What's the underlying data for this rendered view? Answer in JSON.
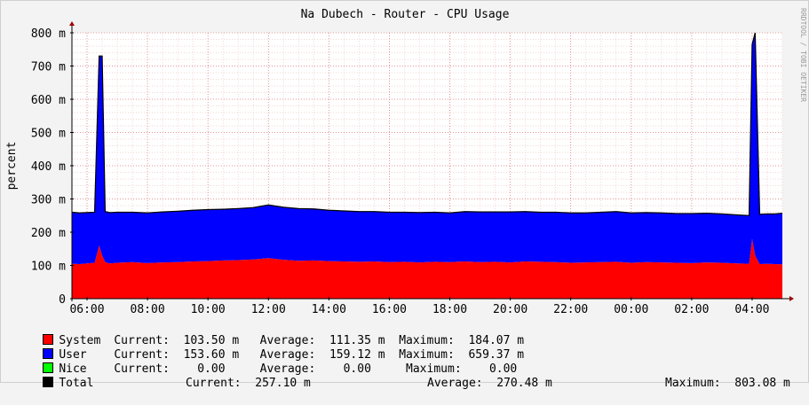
{
  "watermark": "RRDTOOL / TOBI OETIKER",
  "chart_data": {
    "type": "area",
    "title": "Na Dubech - Router - CPU Usage",
    "ylabel": "percent",
    "ylim": [
      0,
      800
    ],
    "yticks": [
      {
        "v": 0,
        "label": "0"
      },
      {
        "v": 100,
        "label": "100 m"
      },
      {
        "v": 200,
        "label": "200 m"
      },
      {
        "v": 300,
        "label": "300 m"
      },
      {
        "v": 400,
        "label": "400 m"
      },
      {
        "v": 500,
        "label": "500 m"
      },
      {
        "v": 600,
        "label": "600 m"
      },
      {
        "v": 700,
        "label": "700 m"
      },
      {
        "v": 800,
        "label": "800 m"
      }
    ],
    "xlim": [
      5.5,
      29.0
    ],
    "xticks": [
      {
        "v": 6,
        "label": "06:00"
      },
      {
        "v": 8,
        "label": "08:00"
      },
      {
        "v": 10,
        "label": "10:00"
      },
      {
        "v": 12,
        "label": "12:00"
      },
      {
        "v": 14,
        "label": "14:00"
      },
      {
        "v": 16,
        "label": "16:00"
      },
      {
        "v": 18,
        "label": "18:00"
      },
      {
        "v": 20,
        "label": "20:00"
      },
      {
        "v": 22,
        "label": "22:00"
      },
      {
        "v": 24,
        "label": "00:00"
      },
      {
        "v": 26,
        "label": "02:00"
      },
      {
        "v": 28,
        "label": "04:00"
      }
    ],
    "grid": true,
    "x": [
      5.5,
      5.75,
      6.0,
      6.25,
      6.4,
      6.5,
      6.6,
      6.75,
      7.0,
      7.5,
      8.0,
      8.5,
      9.0,
      9.5,
      10.0,
      10.5,
      11.0,
      11.5,
      12.0,
      12.5,
      13.0,
      13.5,
      14.0,
      14.5,
      15.0,
      15.5,
      16.0,
      16.5,
      17.0,
      17.5,
      18.0,
      18.5,
      19.0,
      19.5,
      20.0,
      20.5,
      21.0,
      21.5,
      22.0,
      22.5,
      23.0,
      23.5,
      24.0,
      24.5,
      25.0,
      25.5,
      26.0,
      26.5,
      27.0,
      27.5,
      27.9,
      28.0,
      28.1,
      28.25,
      28.5,
      28.75,
      29.0
    ],
    "series": [
      {
        "name": "System",
        "color": "#ff0000",
        "values": [
          105,
          104,
          106,
          108,
          160,
          130,
          110,
          106,
          108,
          110,
          107,
          109,
          110,
          112,
          113,
          115,
          116,
          118,
          122,
          117,
          114,
          115,
          113,
          112,
          111,
          112,
          110,
          111,
          109,
          111,
          110,
          112,
          110,
          111,
          109,
          112,
          111,
          110,
          108,
          109,
          110,
          111,
          108,
          110,
          109,
          108,
          107,
          109,
          108,
          106,
          105,
          180,
          130,
          104,
          105,
          104,
          103.5
        ]
      },
      {
        "name": "User",
        "color": "#0000ff",
        "values": [
          155,
          154,
          153,
          152,
          570,
          600,
          152,
          153,
          152,
          150,
          151,
          152,
          153,
          154,
          155,
          154,
          155,
          156,
          160,
          158,
          157,
          155,
          153,
          152,
          151,
          150,
          150,
          149,
          150,
          149,
          148,
          150,
          151,
          150,
          152,
          150,
          149,
          150,
          150,
          149,
          150,
          151,
          150,
          149,
          149,
          148,
          149,
          148,
          147,
          146,
          145,
          585,
          670,
          150,
          150,
          151,
          153.6
        ]
      },
      {
        "name": "Nice",
        "color": "#00ff00",
        "values": [
          0,
          0,
          0,
          0,
          0,
          0,
          0,
          0,
          0,
          0,
          0,
          0,
          0,
          0,
          0,
          0,
          0,
          0,
          0,
          0,
          0,
          0,
          0,
          0,
          0,
          0,
          0,
          0,
          0,
          0,
          0,
          0,
          0,
          0,
          0,
          0,
          0,
          0,
          0,
          0,
          0,
          0,
          0,
          0,
          0,
          0,
          0,
          0,
          0,
          0,
          0,
          0,
          0,
          0,
          0,
          0,
          0
        ]
      }
    ]
  },
  "legend": [
    {
      "name": "System",
      "color": "#ff0000",
      "text": "Current:  103.50 m   Average:  111.35 m  Maximum:  184.07 m"
    },
    {
      "name": "User",
      "color": "#0000ff",
      "text": "Current:  153.60 m   Average:  159.12 m  Maximum:  659.37 m"
    },
    {
      "name": "Nice",
      "color": "#00ff00",
      "text": "Current:    0.00     Average:    0.00     Maximum:    0.00"
    }
  ],
  "total": {
    "name": "Total",
    "color": "#000000",
    "current": "Current:  257.10 m",
    "average": "Average:  270.48 m",
    "maximum": "Maximum:  803.08 m"
  }
}
